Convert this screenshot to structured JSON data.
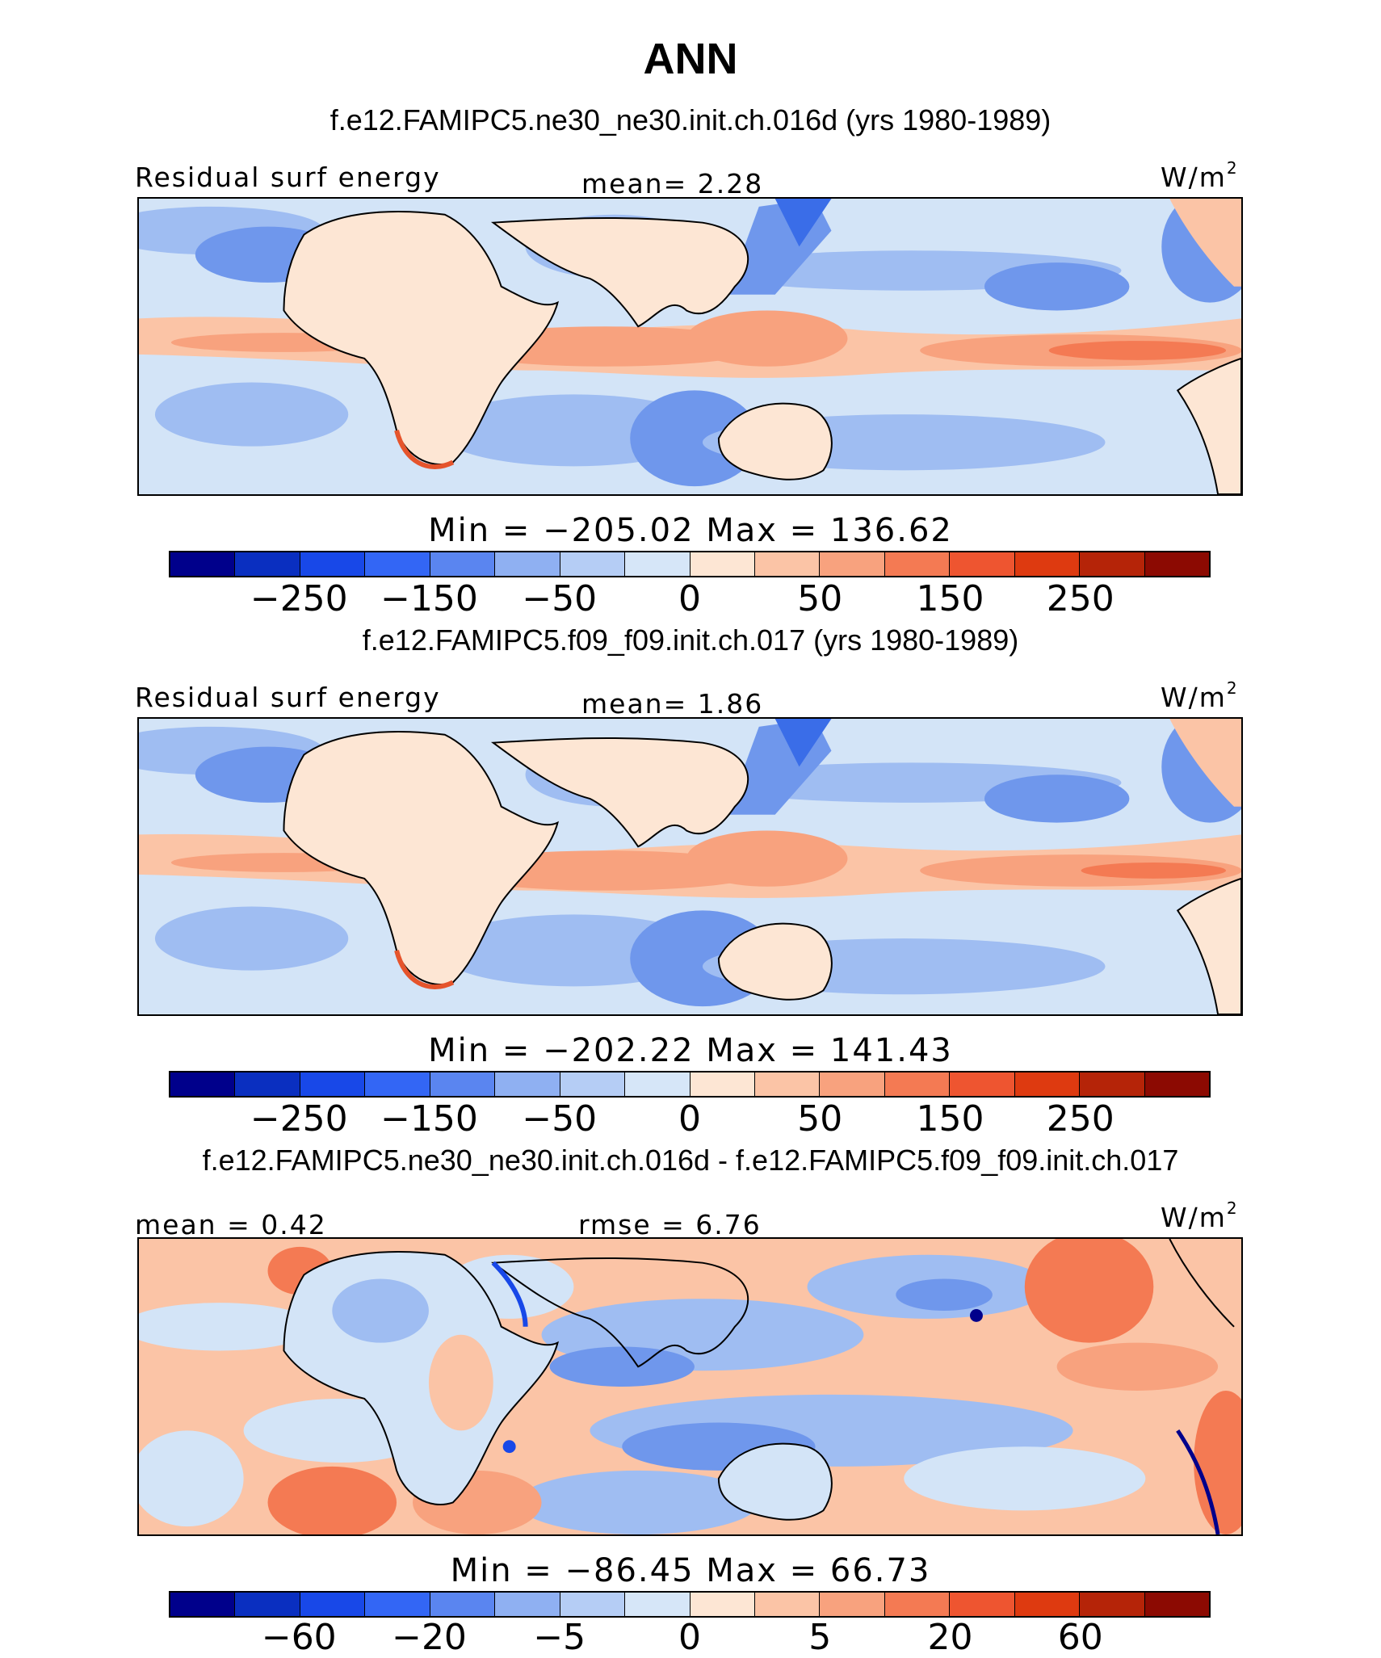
{
  "figure_title": "ANN",
  "panels": [
    {
      "case_title": "f.e12.FAMIPC5.ne30_ne30.init.ch.016d (yrs 1980-1989)",
      "variable": "Residual surf energy",
      "stat_left": "",
      "stat_center": "mean=   2.28",
      "units": "W/m",
      "units_exp": "2",
      "min_max": "Min = −205.02 Max = 136.62",
      "colorbar_ticks": [
        "−250",
        "−150",
        "−50",
        "0",
        "50",
        "150",
        "250"
      ]
    },
    {
      "case_title": "f.e12.FAMIPC5.f09_f09.init.ch.017 (yrs 1980-1989)",
      "variable": "Residual surf energy",
      "stat_left": "",
      "stat_center": "mean=   1.86",
      "units": "W/m",
      "units_exp": "2",
      "min_max": "Min = −202.22 Max = 141.43",
      "colorbar_ticks": [
        "−250",
        "−150",
        "−50",
        "0",
        "50",
        "150",
        "250"
      ]
    },
    {
      "case_title": "f.e12.FAMIPC5.ne30_ne30.init.ch.016d - f.e12.FAMIPC5.f09_f09.init.ch.017",
      "variable": "",
      "stat_left": "mean =   0.42",
      "stat_center": "rmse =   6.76",
      "units": "W/m",
      "units_exp": "2",
      "min_max": "Min = −86.45 Max =  66.73",
      "colorbar_ticks": [
        "−60",
        "−20",
        "−5",
        "0",
        "5",
        "20",
        "60"
      ]
    }
  ],
  "colorbar_colors": [
    "#00008b",
    "#0a2fc0",
    "#1848e8",
    "#3366f5",
    "#5a85f0",
    "#8fb0f2",
    "#b5cdf5",
    "#d6e6f8",
    "#fde6d4",
    "#fbc4a6",
    "#f8a27e",
    "#f47a53",
    "#ee5530",
    "#de3a10",
    "#b52408",
    "#8c0a02"
  ],
  "map_colors": {
    "ocean_light_blue": "#d3e4f7",
    "ocean_blue": "#9fbdf2",
    "ocean_mid_blue": "#6f97ec",
    "deep_blue": "#3a6de8",
    "land_peach": "#fde6d4",
    "light_orange": "#f8b593",
    "orange": "#f3855e",
    "red_orange": "#e5542c"
  }
}
